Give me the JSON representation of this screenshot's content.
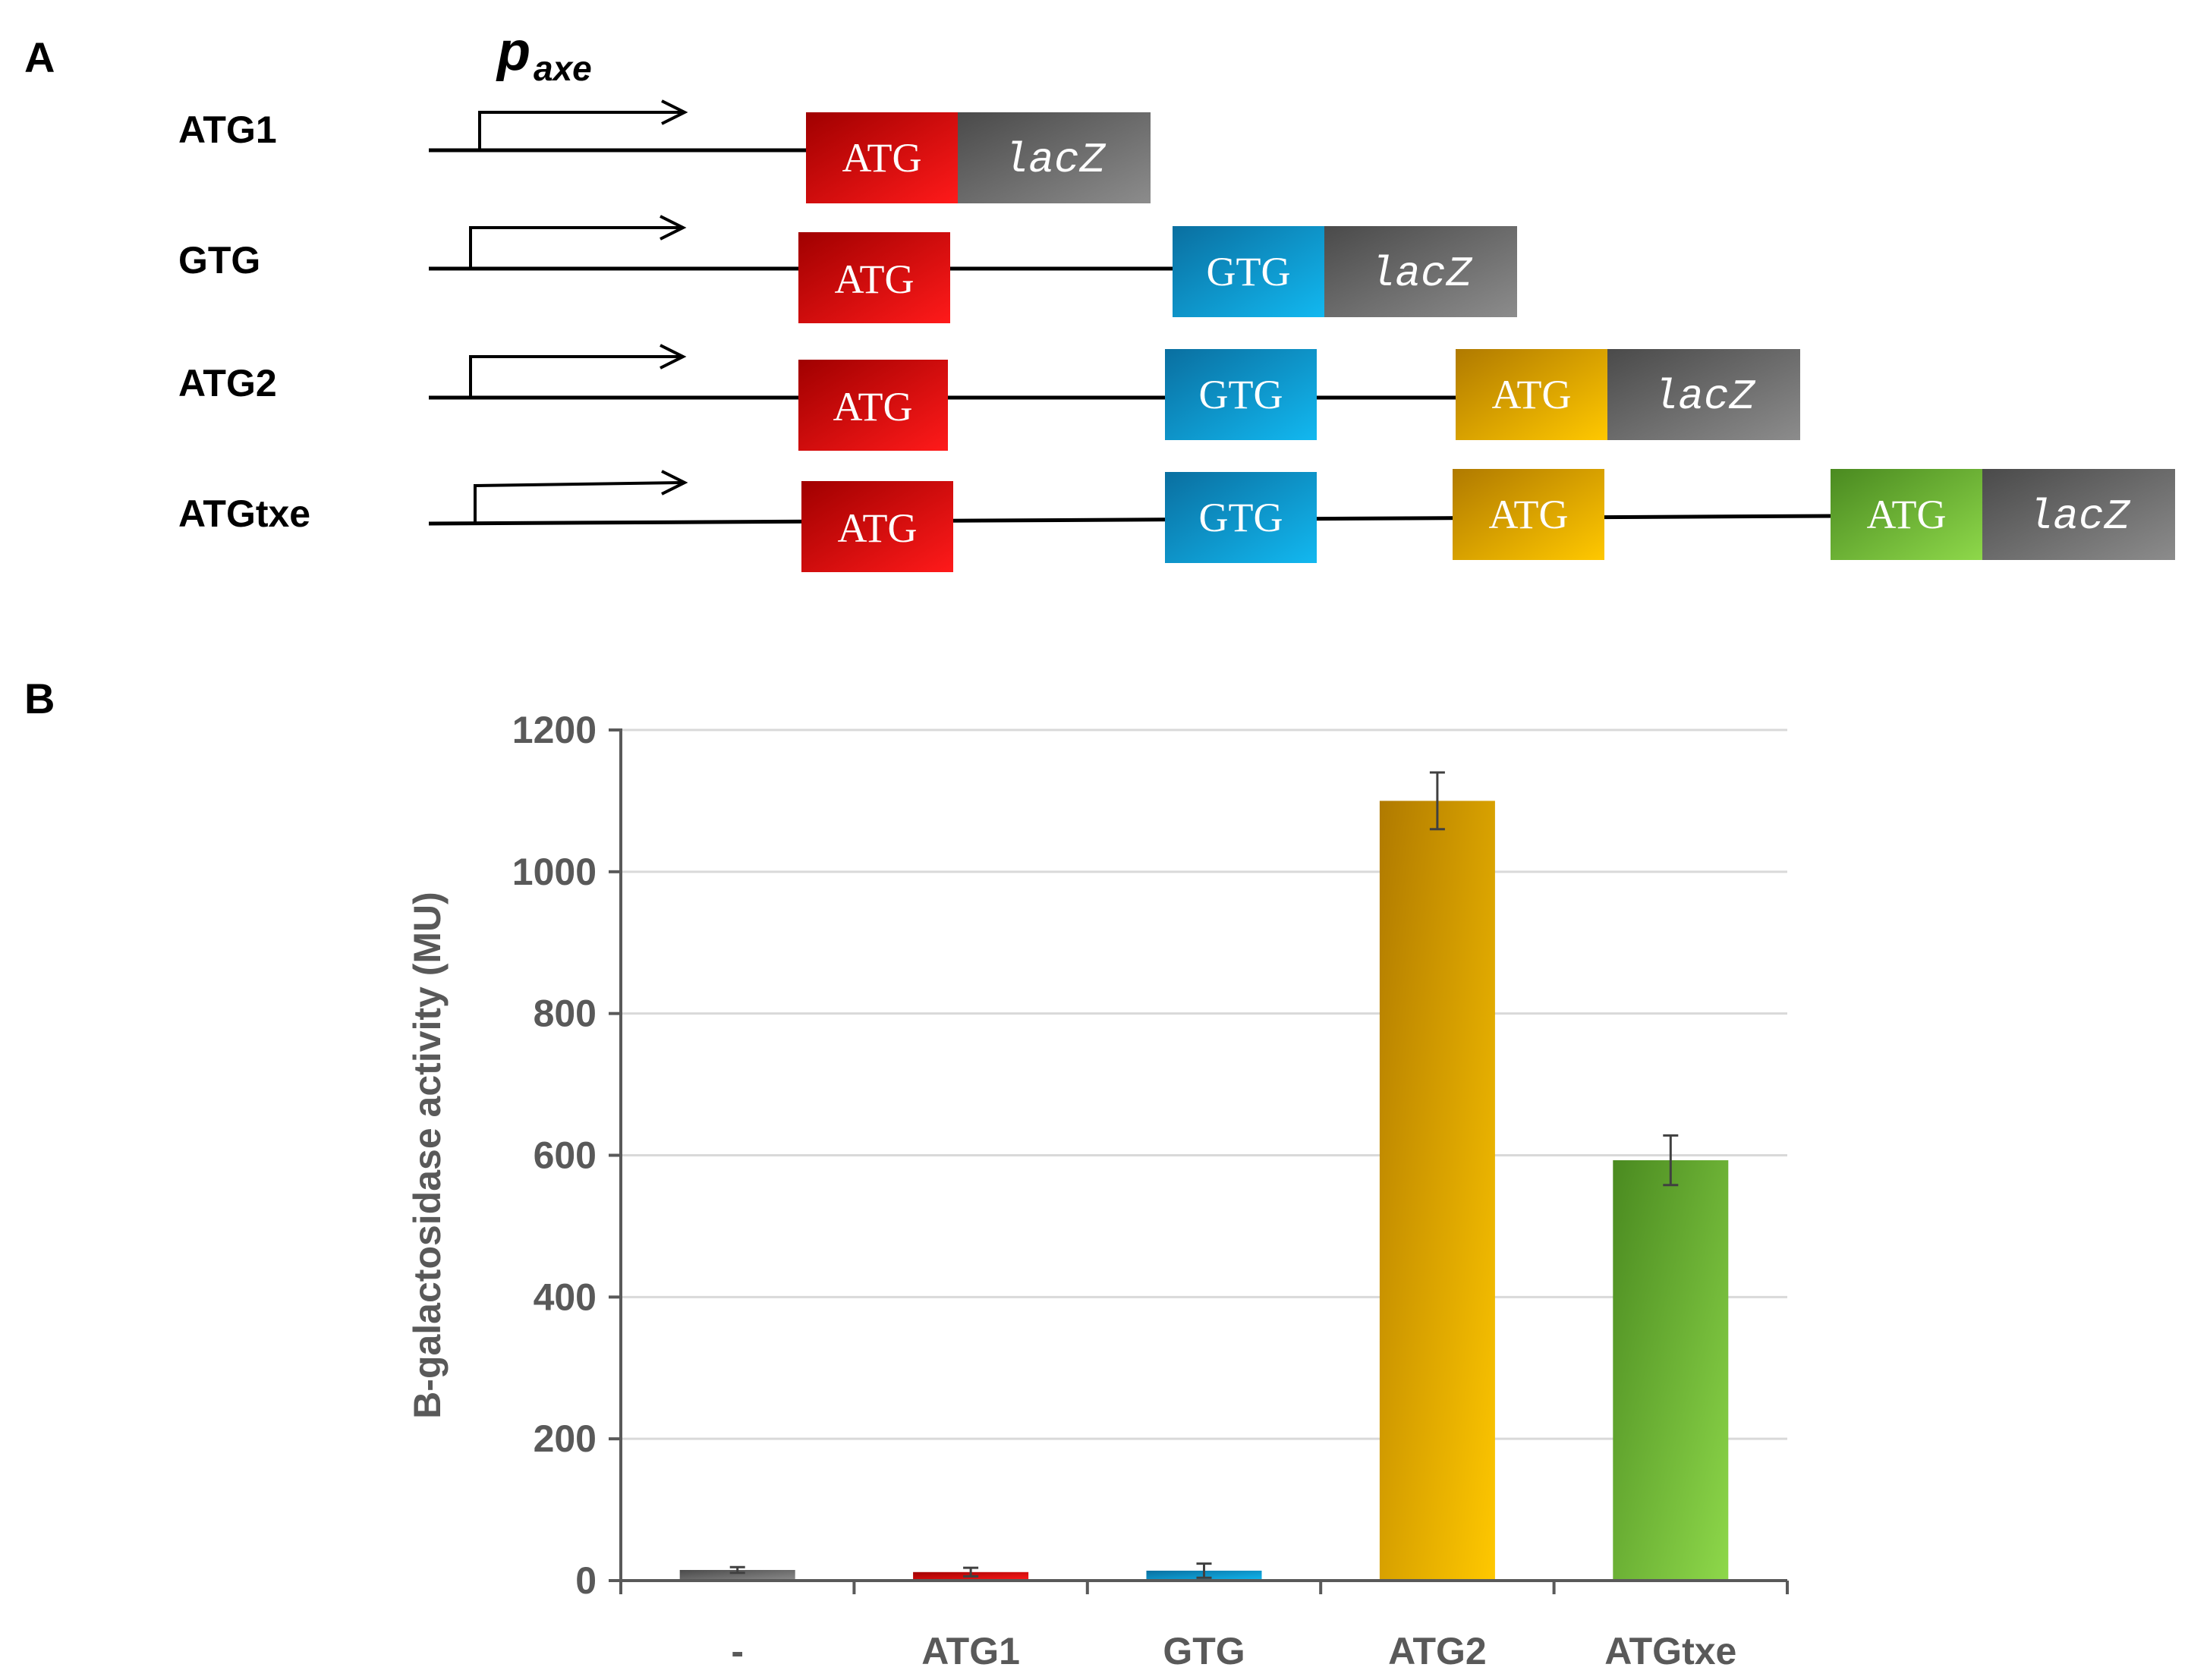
{
  "panels": {
    "a_label": "A",
    "b_label": "B"
  },
  "promoter": {
    "symbol": "p",
    "subscript": "axe"
  },
  "constructs": [
    {
      "label": "ATG1",
      "elements": [
        {
          "text": "ATG",
          "color": "red"
        },
        {
          "text": "lacZ",
          "color": "gray"
        }
      ]
    },
    {
      "label": "GTG",
      "elements": [
        {
          "text": "ATG",
          "color": "red"
        },
        {
          "text": "GTG",
          "color": "blue"
        },
        {
          "text": "lacZ",
          "color": "gray"
        }
      ]
    },
    {
      "label": "ATG2",
      "elements": [
        {
          "text": "ATG",
          "color": "red"
        },
        {
          "text": "GTG",
          "color": "blue"
        },
        {
          "text": "ATG",
          "color": "orange"
        },
        {
          "text": "lacZ",
          "color": "gray"
        }
      ]
    },
    {
      "label": "ATGtxe",
      "elements": [
        {
          "text": "ATG",
          "color": "red"
        },
        {
          "text": "GTG",
          "color": "blue"
        },
        {
          "text": "ATG",
          "color": "orange"
        },
        {
          "text": "ATG",
          "color": "green"
        },
        {
          "text": "lacZ",
          "color": "gray"
        }
      ]
    }
  ],
  "colors": {
    "red": "#e00000",
    "blue": "#1ea0dc",
    "orange": "#f0b000",
    "green": "#70c040",
    "gray": "#6e6e6e",
    "axis": "#595959",
    "grid": "#d9d9d9"
  },
  "chart_data": {
    "type": "bar",
    "title": "",
    "xlabel": "",
    "ylabel": "B-galactosidase activity (MU)",
    "categories": [
      "-",
      "ATG1",
      "GTG",
      "ATG2",
      "ATGtxe"
    ],
    "values": [
      15,
      12,
      14,
      1100,
      593
    ],
    "errors": [
      4,
      6,
      10,
      40,
      35
    ],
    "bar_colors": [
      "gray",
      "red",
      "blue",
      "orange",
      "green"
    ],
    "ylim": [
      0,
      1200
    ],
    "yticks": [
      0,
      200,
      400,
      600,
      800,
      1000,
      1200
    ],
    "ytick_labels": [
      "0",
      "200",
      "400",
      "600",
      "800",
      "1000",
      "1200"
    ],
    "grid": true
  }
}
